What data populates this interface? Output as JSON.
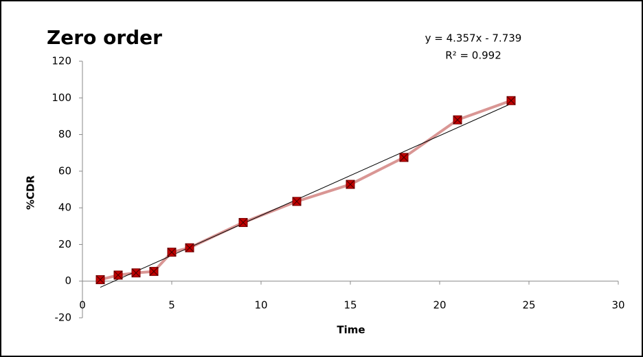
{
  "chart_data": {
    "type": "line",
    "title": "Zero order",
    "x_label": "Time",
    "y_label": "%CDR",
    "annotations": [
      "y = 4.357x - 7.739",
      "R² = 0.992"
    ],
    "x": [
      1,
      2,
      3,
      4,
      5,
      6,
      9,
      12,
      15,
      18,
      21,
      24
    ],
    "series": [
      {
        "color": "#d99694",
        "marker_color": "#c00000",
        "values": [
          0.8,
          3.3,
          4.5,
          5.3,
          15.8,
          18.2,
          32,
          43.5,
          52.8,
          67.5,
          88,
          98.5
        ]
      }
    ],
    "trendline": {
      "x": [
        1,
        24
      ],
      "values": [
        -3.382,
        96.829
      ],
      "color": "#000000"
    },
    "xlim": [
      0,
      30
    ],
    "xticks": [
      0,
      5,
      10,
      15,
      20,
      25,
      30
    ],
    "ylim": [
      -20,
      120
    ],
    "yticks": [
      -20,
      0,
      20,
      40,
      60,
      80,
      100,
      120
    ]
  }
}
